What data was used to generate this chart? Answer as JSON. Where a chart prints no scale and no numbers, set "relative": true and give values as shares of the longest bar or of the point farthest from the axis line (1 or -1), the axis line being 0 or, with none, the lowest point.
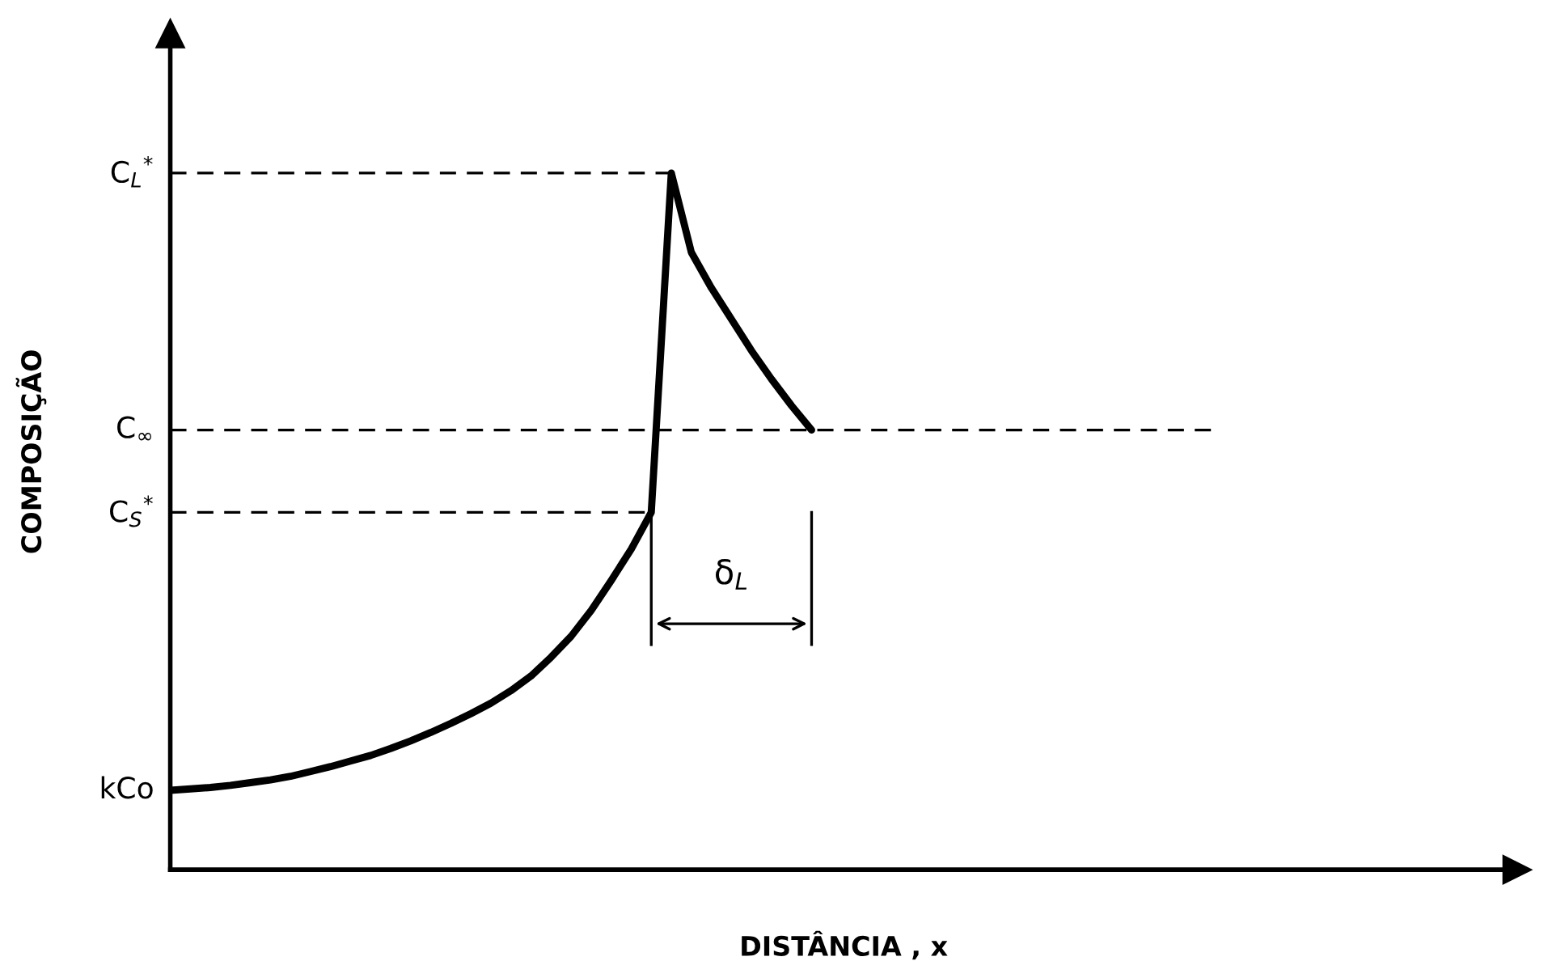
{
  "chart_data": {
    "type": "line",
    "relative": true,
    "xlabel": "DISTÂNCIA , x",
    "ylabel": "COMPOSIÇÃO",
    "line_style": "solid",
    "marker": "none",
    "legend": false,
    "grid": false,
    "tick_labels": false,
    "categories": [
      null,
      null,
      null,
      null,
      null,
      null,
      null,
      null,
      null,
      null,
      null,
      null,
      null,
      null,
      null,
      null,
      null,
      null,
      null,
      null,
      null,
      null,
      null,
      null,
      null,
      null,
      null,
      null,
      null,
      null,
      null,
      null,
      null,
      null,
      null,
      null,
      null,
      null,
      null,
      null,
      null,
      null,
      null,
      null,
      null,
      null,
      null,
      null,
      null,
      null,
      null,
      null,
      null,
      null,
      null,
      null,
      null,
      null,
      null,
      null,
      null,
      null,
      null,
      null,
      null,
      null,
      null,
      null
    ],
    "series": [
      {
        "color": "#000000",
        "values": [
          0.114,
          0.116,
          0.118,
          0.121,
          0.125,
          0.129,
          0.134,
          0.141,
          0.148,
          0.156,
          0.164,
          0.174,
          0.185,
          0.197,
          0.21,
          0.224,
          0.239,
          0.257,
          0.278,
          0.305,
          0.335,
          0.372,
          0.415,
          0.46,
          0.513,
          1,
          0.886,
          0.835,
          0.79,
          0.745,
          0.704,
          0.666,
          0.631,
          null,
          null,
          null,
          null,
          null,
          null,
          null,
          null,
          null,
          null,
          null,
          null,
          null,
          null,
          null,
          null,
          null,
          null,
          null,
          null,
          null,
          null,
          null,
          null,
          null,
          null,
          null,
          null,
          null,
          null,
          null,
          null,
          null,
          null,
          null
        ]
      },
      {
        "color": "#000000",
        "line_style": "dashed",
        "values": [
          1,
          1,
          1,
          1,
          1,
          1,
          1,
          1,
          1,
          1,
          1,
          1,
          1,
          1,
          1,
          1,
          1,
          1,
          1,
          1,
          1,
          1,
          1,
          1,
          1,
          1,
          null,
          null,
          null,
          null,
          null,
          null,
          null,
          null,
          null,
          null,
          null,
          null,
          null,
          null,
          null,
          null,
          null,
          null,
          null,
          null,
          null,
          null,
          null,
          null,
          null,
          null,
          null,
          null,
          null,
          null,
          null,
          null,
          null,
          null,
          null,
          null,
          null,
          null,
          null,
          null,
          null,
          null
        ]
      },
      {
        "color": "#000000",
        "line_style": "dashed",
        "values": [
          0.631,
          0.631,
          0.631,
          0.631,
          0.631,
          0.631,
          0.631,
          0.631,
          0.631,
          0.631,
          0.631,
          0.631,
          0.631,
          0.631,
          0.631,
          0.631,
          0.631,
          0.631,
          0.631,
          0.631,
          0.631,
          0.631,
          0.631,
          0.631,
          0.631,
          0.631,
          0.631,
          0.631,
          0.631,
          0.631,
          0.631,
          0.631,
          0.631,
          0.631,
          0.631,
          0.631,
          0.631,
          0.631,
          0.631,
          0.631,
          0.631,
          0.631,
          0.631,
          0.631,
          0.631,
          0.631,
          0.631,
          0.631,
          0.631,
          0.631,
          0.631,
          0.631,
          0.631,
          null,
          null,
          null,
          null,
          null,
          null,
          null,
          null,
          null,
          null,
          null,
          null,
          null,
          null,
          null
        ]
      },
      {
        "color": "#000000",
        "line_style": "dashed",
        "values": [
          0.513,
          0.513,
          0.513,
          0.513,
          0.513,
          0.513,
          0.513,
          0.513,
          0.513,
          0.513,
          0.513,
          0.513,
          0.513,
          0.513,
          0.513,
          0.513,
          0.513,
          0.513,
          0.513,
          0.513,
          0.513,
          0.513,
          0.513,
          0.513,
          0.513,
          null,
          null,
          null,
          null,
          null,
          null,
          null,
          null,
          null,
          null,
          null,
          null,
          null,
          null,
          null,
          null,
          null,
          null,
          null,
          null,
          null,
          null,
          null,
          null,
          null,
          null,
          null,
          null,
          null,
          null,
          null,
          null,
          null,
          null,
          null,
          null,
          null,
          null,
          null,
          null,
          null,
          null,
          null
        ]
      }
    ],
    "annotations": [
      "C$_{L}$$^{*}$",
      "C$_{∞}$",
      "C$_{S}$$^{*}$",
      "kCo",
      "δ$_{L}$"
    ]
  }
}
